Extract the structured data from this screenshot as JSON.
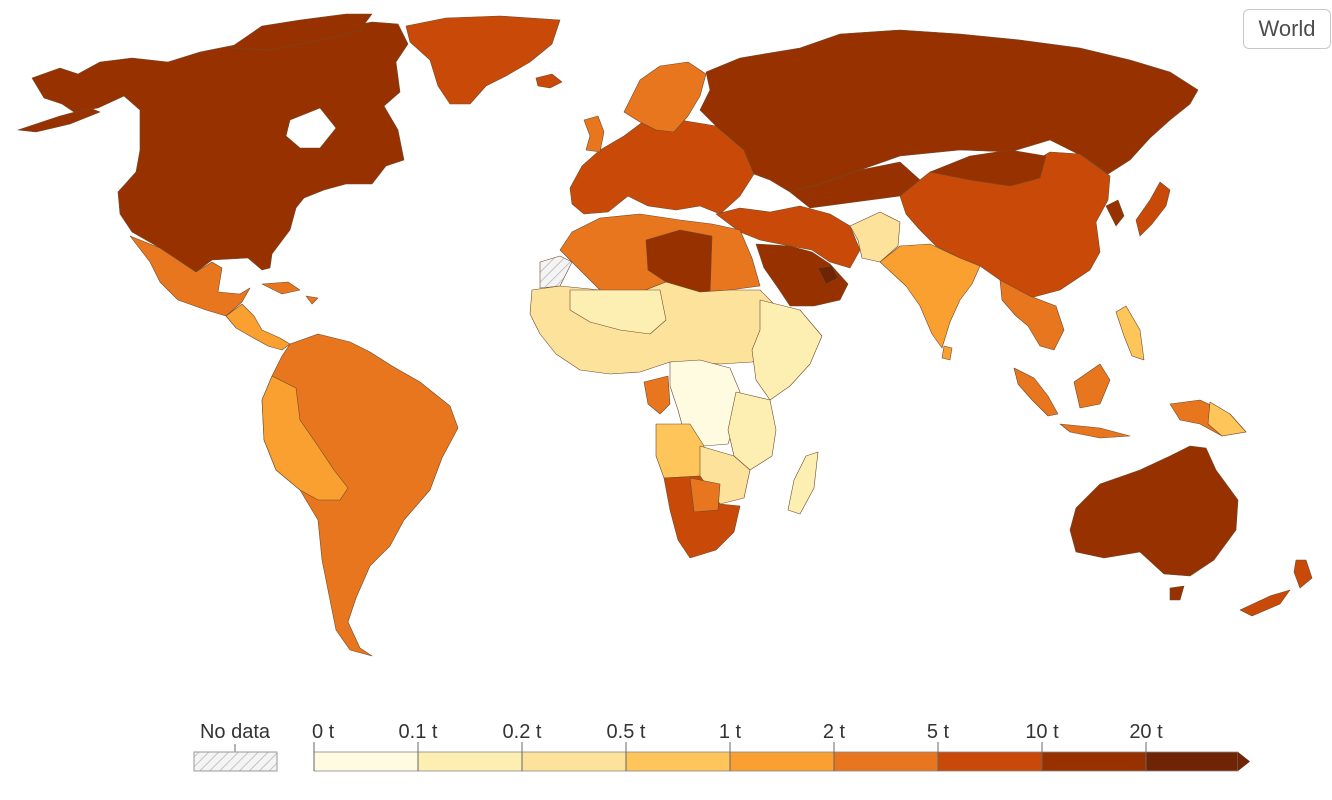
{
  "controls": {
    "region_button_label": "World"
  },
  "legend": {
    "no_data_label": "No data",
    "ticks": [
      "0 t",
      "0.1 t",
      "0.2 t",
      "0.5 t",
      "1 t",
      "2 t",
      "5 t",
      "10 t",
      "20 t"
    ],
    "colors": [
      "#fefbe1",
      "#fdeeb2",
      "#fde29c",
      "#fdc55a",
      "#f9a031",
      "#e8761e",
      "#c94a08",
      "#973200",
      "#6e2405"
    ],
    "no_data_fill": "hatched-gray"
  },
  "map": {
    "projection": "world",
    "regions": [
      {
        "name": "North America (Canada, USA)",
        "class": "10-20 t",
        "color": "#973200"
      },
      {
        "name": "Greenland",
        "class": "5-10 t",
        "color": "#c94a08"
      },
      {
        "name": "Mexico",
        "class": "2-5 t",
        "color": "#e8761e"
      },
      {
        "name": "Central America",
        "class": "1-2 t",
        "color": "#f9a031"
      },
      {
        "name": "South America (Brazil, Argentina)",
        "class": "2-5 t",
        "color": "#e8761e"
      },
      {
        "name": "Andean countries (Peru, Bolivia)",
        "class": "1-2 t",
        "color": "#f9a031"
      },
      {
        "name": "Europe",
        "class": "5-10 t",
        "color": "#c94a08"
      },
      {
        "name": "Russia",
        "class": "10-20 t",
        "color": "#973200"
      },
      {
        "name": "Kazakhstan / Central Asia",
        "class": "10-20 t",
        "color": "#973200"
      },
      {
        "name": "China",
        "class": "5-10 t",
        "color": "#c94a08"
      },
      {
        "name": "India",
        "class": "1-2 t",
        "color": "#f9a031"
      },
      {
        "name": "Southeast Asia",
        "class": "2-5 t",
        "color": "#e8761e"
      },
      {
        "name": "Japan",
        "class": "5-10 t",
        "color": "#c94a08"
      },
      {
        "name": "Middle East (Saudi Arabia, Iran)",
        "class": "10-20 t",
        "color": "#973200"
      },
      {
        "name": "Qatar / UAE",
        "class": "20+ t",
        "color": "#6e2405"
      },
      {
        "name": "Libya",
        "class": "10-20 t",
        "color": "#973200"
      },
      {
        "name": "Algeria / Egypt",
        "class": "2-5 t",
        "color": "#e8761e"
      },
      {
        "name": "Sahel / West Africa",
        "class": "0.2-0.5 t",
        "color": "#fde29c"
      },
      {
        "name": "Central Africa (DRC)",
        "class": "0-0.1 t",
        "color": "#fefbe1"
      },
      {
        "name": "East Africa",
        "class": "0.1-0.2 t",
        "color": "#fdeeb2"
      },
      {
        "name": "Southern Africa (South Africa)",
        "class": "5-10 t",
        "color": "#c94a08"
      },
      {
        "name": "Australia",
        "class": "10-20 t",
        "color": "#973200"
      },
      {
        "name": "New Zealand",
        "class": "5-10 t",
        "color": "#c94a08"
      },
      {
        "name": "Indonesia",
        "class": "2-5 t",
        "color": "#e8761e"
      },
      {
        "name": "Western Sahara",
        "class": "No data",
        "color": "hatched-gray"
      }
    ]
  }
}
